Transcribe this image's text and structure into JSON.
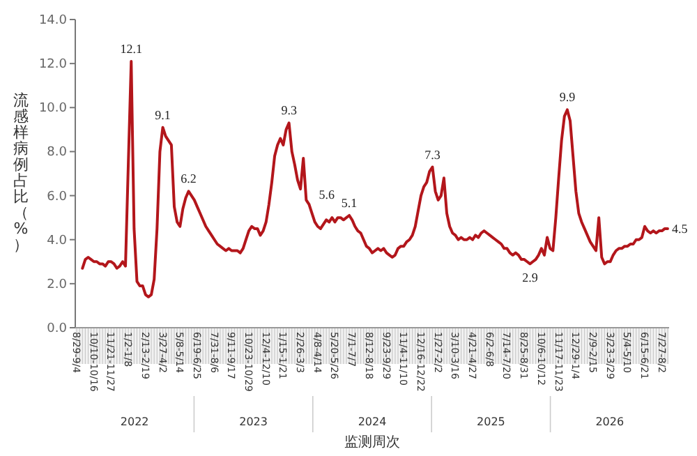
{
  "chart_data": {
    "type": "line",
    "ylabel": "流感样病例占比（%）",
    "xlabel": "监测周次",
    "color": "#b3161b",
    "ylim": [
      0,
      14
    ],
    "yticks": [
      {
        "value": 0,
        "label": "0.0"
      },
      {
        "value": 2,
        "label": "2.0"
      },
      {
        "value": 4,
        "label": "4.0"
      },
      {
        "value": 6,
        "label": "6.0"
      },
      {
        "value": 8,
        "label": "8.0"
      },
      {
        "value": 10,
        "label": "10.0"
      },
      {
        "value": 12,
        "label": "12.0"
      },
      {
        "value": 14,
        "label": "14.0"
      }
    ],
    "grid": false,
    "categories": [
      "8/29-9/4",
      null,
      null,
      null,
      null,
      null,
      "10/10-10/16",
      null,
      null,
      null,
      null,
      null,
      "11/21-11/27",
      null,
      null,
      null,
      null,
      null,
      "1/2-1/8",
      null,
      null,
      null,
      null,
      null,
      "2/13-2/19",
      null,
      null,
      null,
      null,
      null,
      "3/27-4/2",
      null,
      null,
      null,
      null,
      null,
      "5/8-5/14",
      null,
      null,
      null,
      null,
      null,
      "6/19-6/25",
      null,
      null,
      null,
      null,
      null,
      "7/31-8/6",
      null,
      null,
      null,
      null,
      null,
      "9/11-9/17",
      null,
      null,
      null,
      null,
      null,
      "10/23-10/29",
      null,
      null,
      null,
      null,
      null,
      "12/4-12/10",
      null,
      null,
      null,
      null,
      null,
      "1/15-1/21",
      null,
      null,
      null,
      null,
      null,
      "2/26-3/3",
      null,
      null,
      null,
      null,
      null,
      "4/8-4/14",
      null,
      null,
      null,
      null,
      null,
      "5/20-5/26",
      null,
      null,
      null,
      null,
      null,
      "7/1-7/7",
      null,
      null,
      null,
      null,
      null,
      "8/12-8/18",
      null,
      null,
      null,
      null,
      null,
      "9/23-9/29",
      null,
      null,
      null,
      null,
      null,
      "11/4-11/10",
      null,
      null,
      null,
      null,
      null,
      "12/16-12/22",
      null,
      null,
      null,
      null,
      null,
      "1/27-2/2",
      null,
      null,
      null,
      null,
      null,
      "3/10-3/16",
      null,
      null,
      null,
      null,
      null,
      "4/21-4/27",
      null,
      null,
      null,
      null,
      null,
      "6/2-6/8",
      null,
      null,
      null,
      null,
      null,
      "7/14-7/20",
      null,
      null,
      null,
      null,
      null,
      "8/25-8/31",
      null,
      null,
      null,
      null,
      null,
      "10/6-10/12",
      null,
      null,
      null,
      null,
      null,
      "11/17-11/23",
      null,
      null,
      null,
      null,
      null,
      "12/29-1/4",
      null,
      null,
      null,
      null,
      null,
      "2/9-2/15",
      null,
      null,
      null,
      null,
      null,
      "3/23-3/29",
      null,
      null,
      null,
      null,
      null,
      "5/4-5/10",
      null,
      null,
      null,
      null,
      null,
      "6/15-6/21",
      null,
      null,
      null,
      null,
      null,
      "7/27-8/2",
      null,
      null
    ],
    "values": [
      null,
      null,
      2.7,
      3.1,
      3.2,
      3.1,
      3.0,
      3.0,
      2.9,
      2.9,
      2.8,
      3.0,
      3.0,
      2.9,
      2.7,
      2.8,
      3.0,
      2.8,
      7.5,
      12.1,
      4.5,
      2.1,
      1.9,
      1.9,
      1.5,
      1.4,
      1.5,
      2.2,
      4.5,
      8.0,
      9.1,
      8.7,
      8.5,
      8.3,
      5.5,
      4.8,
      4.6,
      5.4,
      5.9,
      6.2,
      6.0,
      5.8,
      5.5,
      5.2,
      4.9,
      4.6,
      4.4,
      4.2,
      4.0,
      3.8,
      3.7,
      3.6,
      3.5,
      3.6,
      3.5,
      3.5,
      3.5,
      3.4,
      3.6,
      4.0,
      4.4,
      4.6,
      4.5,
      4.5,
      4.2,
      4.4,
      4.8,
      5.6,
      6.6,
      7.8,
      8.3,
      8.6,
      8.3,
      9.0,
      9.3,
      8.0,
      7.4,
      6.7,
      6.3,
      7.7,
      5.8,
      5.6,
      5.2,
      4.8,
      4.6,
      4.5,
      4.7,
      4.9,
      4.8,
      5.0,
      4.8,
      5.0,
      5.0,
      4.9,
      5.0,
      5.1,
      4.9,
      4.6,
      4.4,
      4.3,
      4.0,
      3.7,
      3.6,
      3.4,
      3.5,
      3.6,
      3.5,
      3.6,
      3.4,
      3.3,
      3.2,
      3.3,
      3.6,
      3.7,
      3.7,
      3.9,
      4.0,
      4.2,
      4.6,
      5.3,
      6.0,
      6.4,
      6.6,
      7.1,
      7.3,
      6.2,
      5.8,
      6.0,
      6.8,
      5.2,
      4.6,
      4.3,
      4.2,
      4.0,
      4.1,
      4.0,
      4.0,
      4.1,
      4.0,
      4.2,
      4.1,
      4.3,
      4.4,
      4.3,
      4.2,
      4.1,
      4.0,
      3.9,
      3.8,
      3.6,
      3.6,
      3.4,
      3.3,
      3.4,
      3.3,
      3.1,
      3.1,
      3.0,
      2.9,
      3.0,
      3.1,
      3.3,
      3.6,
      3.3,
      4.1,
      3.6,
      3.5,
      5.0,
      6.8,
      8.5,
      9.6,
      9.9,
      9.4,
      7.8,
      6.2,
      5.2,
      4.8,
      4.5,
      4.2,
      3.9,
      3.7,
      3.5,
      5.0,
      3.2,
      2.9,
      3.0,
      3.0,
      3.3,
      3.5,
      3.6,
      3.6,
      3.7,
      3.7,
      3.8,
      3.8,
      4.0,
      4.0,
      4.1,
      4.6,
      4.4,
      4.3,
      4.4,
      4.3,
      4.4,
      4.4,
      4.5,
      4.5
    ],
    "value_labels": [
      null,
      null,
      null,
      null,
      null,
      null,
      null,
      null,
      null,
      null,
      null,
      null,
      null,
      null,
      null,
      null,
      null,
      null,
      null,
      "12.1",
      null,
      null,
      null,
      null,
      null,
      null,
      null,
      null,
      null,
      null,
      "9.1",
      null,
      null,
      null,
      null,
      null,
      null,
      null,
      null,
      "6.2",
      null,
      null,
      null,
      null,
      null,
      null,
      null,
      null,
      null,
      null,
      null,
      null,
      null,
      null,
      null,
      null,
      null,
      null,
      null,
      null,
      null,
      null,
      null,
      null,
      null,
      null,
      null,
      null,
      null,
      null,
      null,
      null,
      null,
      null,
      "9.3",
      null,
      null,
      null,
      null,
      null,
      null,
      "5.6",
      null,
      null,
      null,
      null,
      null,
      null,
      null,
      null,
      null,
      null,
      null,
      null,
      null,
      "5.1",
      null,
      null,
      null,
      null,
      null,
      null,
      null,
      null,
      null,
      null,
      null,
      null,
      null,
      null,
      null,
      null,
      null,
      null,
      null,
      null,
      null,
      null,
      null,
      null,
      null,
      null,
      null,
      null,
      "7.3",
      null,
      null,
      null,
      null,
      null,
      null,
      null,
      null,
      null,
      null,
      null,
      null,
      null,
      null,
      null,
      null,
      null,
      null,
      null,
      null,
      null,
      null,
      null,
      null,
      null,
      null,
      null,
      null,
      null,
      null,
      null,
      null,
      null,
      "2.9",
      null,
      null,
      null,
      null,
      null,
      null,
      null,
      null,
      null,
      null,
      null,
      null,
      "9.9",
      null,
      null,
      null,
      null,
      null,
      null,
      null,
      null,
      null,
      null,
      null,
      null,
      null,
      null,
      null,
      null,
      null,
      null,
      null,
      null,
      null,
      null,
      null,
      null,
      null,
      null,
      null,
      null,
      null,
      null,
      null,
      null,
      null,
      null,
      "4.5"
    ],
    "annotations": [
      "2022",
      "2023",
      "2024",
      "2025",
      "2026"
    ]
  }
}
